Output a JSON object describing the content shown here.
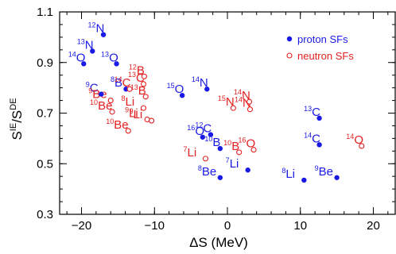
{
  "chart_data": {
    "type": "scatter",
    "xlabel": "ΔS (MeV)",
    "ylabel_main": "S",
    "ylabel_sup1": "IE",
    "ylabel_mid": "/S",
    "ylabel_sup2": "DE",
    "xlim": [
      -23,
      23
    ],
    "ylim": [
      0.3,
      1.1
    ],
    "x_ticks": [
      -20,
      -10,
      0,
      10,
      20
    ],
    "x_tick_labels": [
      "−20",
      "−10",
      "0",
      "10",
      "20"
    ],
    "y_ticks": [
      0.3,
      0.5,
      0.7,
      0.9,
      1.1
    ],
    "y_tick_labels": [
      "0.3",
      "0.5",
      "0.7",
      "0.9",
      "1.1"
    ],
    "x_minor_step": 2,
    "y_minor_step": 0.05,
    "grid": false,
    "legend_position": "top-right",
    "series": [
      {
        "name": "proton SFs",
        "color": "#1a1ae6",
        "marker": "filled-circle",
        "points": [
          {
            "x": -17.0,
            "y": 1.01,
            "mass": "12",
            "el": "N"
          },
          {
            "x": -18.5,
            "y": 0.945,
            "mass": "13",
            "el": "N"
          },
          {
            "x": -19.7,
            "y": 0.895,
            "mass": "14",
            "el": "O"
          },
          {
            "x": -15.2,
            "y": 0.895,
            "mass": "13",
            "el": "O"
          },
          {
            "x": -17.3,
            "y": 0.775,
            "mass": "9",
            "el": "C"
          },
          {
            "x": -13.9,
            "y": 0.795,
            "mass": "8",
            "el": "B"
          },
          {
            "x": -6.2,
            "y": 0.77,
            "mass": "15",
            "el": "O"
          },
          {
            "x": -2.8,
            "y": 0.795,
            "mass": "14",
            "el": "N"
          },
          {
            "x": -2.3,
            "y": 0.615,
            "mass": "12",
            "el": "C"
          },
          {
            "x": -3.4,
            "y": 0.605,
            "mass": "16",
            "el": "O"
          },
          {
            "x": -1.0,
            "y": 0.56,
            "mass": "10",
            "el": "B"
          },
          {
            "x": -1.0,
            "y": 0.445,
            "mass": "8",
            "el": "Be"
          },
          {
            "x": 2.8,
            "y": 0.475,
            "mass": "7",
            "el": "Li"
          },
          {
            "x": 10.5,
            "y": 0.435,
            "mass": "8",
            "el": "Li"
          },
          {
            "x": 12.6,
            "y": 0.68,
            "mass": "13",
            "el": "C"
          },
          {
            "x": 12.6,
            "y": 0.575,
            "mass": "14",
            "el": "C"
          },
          {
            "x": 15.0,
            "y": 0.445,
            "mass": "9",
            "el": "Be"
          }
        ]
      },
      {
        "name": "neutron SFs",
        "color": "#e52020",
        "marker": "open-circle",
        "points": [
          {
            "x": -11.4,
            "y": 0.845,
            "mass": "12",
            "el": "B"
          },
          {
            "x": -11.5,
            "y": 0.815,
            "mass": "13",
            "el": "C"
          },
          {
            "x": -13.4,
            "y": 0.795,
            "mass": "14",
            "el": "C"
          },
          {
            "x": -11.2,
            "y": 0.765,
            "mass": "13",
            "el": "B"
          },
          {
            "x": -16.0,
            "y": 0.75,
            "mass": "9",
            "el": "Be"
          },
          {
            "x": -15.8,
            "y": 0.705,
            "mass": "10",
            "el": "Be"
          },
          {
            "x": -11.5,
            "y": 0.72,
            "mass": "8",
            "el": "Li"
          },
          {
            "x": -11.0,
            "y": 0.675,
            "mass": "9",
            "el": "Li"
          },
          {
            "x": -10.4,
            "y": 0.67,
            "mass": "9",
            "el": "Li"
          },
          {
            "x": -13.6,
            "y": 0.63,
            "mass": "10",
            "el": "Be"
          },
          {
            "x": 0.8,
            "y": 0.72,
            "mass": "15",
            "el": "N"
          },
          {
            "x": 3.0,
            "y": 0.745,
            "mass": "14",
            "el": "N"
          },
          {
            "x": 3.1,
            "y": 0.715,
            "mass": "14",
            "el": "N"
          },
          {
            "x": 1.6,
            "y": 0.545,
            "mass": "10",
            "el": "B"
          },
          {
            "x": 3.6,
            "y": 0.555,
            "mass": "16",
            "el": "O"
          },
          {
            "x": -3.0,
            "y": 0.52,
            "mass": "7",
            "el": "Li"
          },
          {
            "x": 18.4,
            "y": 0.57,
            "mass": "14",
            "el": "O"
          }
        ]
      }
    ]
  }
}
